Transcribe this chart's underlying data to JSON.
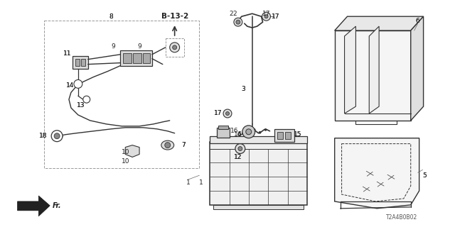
{
  "bg_color": "#ffffff",
  "line_color": "#333333",
  "text_color": "#222222",
  "fig_width": 6.4,
  "fig_height": 3.2,
  "dpi": 100,
  "watermark": "T2A4B0B02"
}
